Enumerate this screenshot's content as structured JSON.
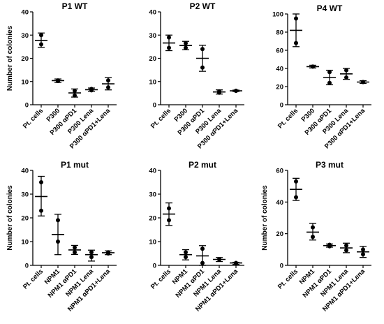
{
  "chart_data": [
    {
      "type": "scatter",
      "title": "P1 WT",
      "ylabel": "Number of colonies",
      "ylim": [
        0,
        40
      ],
      "yticks": [
        0,
        10,
        20,
        30,
        40
      ],
      "categories": [
        "Pt. cells",
        "P300",
        "P300 αPD1",
        "P300 Lena",
        "P300 αPD1+Lena"
      ],
      "points": [
        [
          30,
          26
        ],
        [
          10.5,
          10.2
        ],
        [
          6,
          4
        ],
        [
          6.2,
          6.8
        ],
        [
          10.5,
          7.5
        ]
      ],
      "mean": [
        27.7,
        10.4,
        5.1,
        6.5,
        9
      ],
      "err_low": [
        24.7,
        9.6,
        3.3,
        5.8,
        6.4
      ],
      "err_high": [
        30.9,
        11.1,
        6.8,
        7.2,
        11.7
      ],
      "grid": false,
      "legend": "none"
    },
    {
      "type": "scatter",
      "title": "P2 WT",
      "ylabel": "",
      "ylim": [
        0,
        40
      ],
      "yticks": [
        0,
        10,
        20,
        30,
        40
      ],
      "categories": [
        "Pt. cells",
        "P300",
        "P300 αPD1",
        "P300 Lena",
        "P300 αPD1+Lena"
      ],
      "points": [
        [
          29,
          24.5
        ],
        [
          26.5,
          24.5
        ],
        [
          24,
          16
        ],
        [
          5.2,
          5.8
        ],
        [
          6,
          6
        ]
      ],
      "mean": [
        26.6,
        25.5,
        20,
        5.5,
        6
      ],
      "err_low": [
        23.3,
        23.7,
        14.4,
        4.6,
        5.7
      ],
      "err_high": [
        30,
        27.3,
        25.6,
        6.4,
        6.3
      ],
      "grid": false,
      "legend": "none"
    },
    {
      "type": "scatter",
      "title": "P4 WT",
      "ylabel": "",
      "ylim": [
        0,
        100
      ],
      "yticks": [
        0,
        20,
        40,
        60,
        80,
        100
      ],
      "categories": [
        "Pt. cells",
        "P300",
        "P300 αPD1",
        "P300 Lena",
        "P300 αPD1+Lena"
      ],
      "points": [
        [
          95,
          68
        ],
        [
          42,
          42
        ],
        [
          36,
          24
        ],
        [
          38,
          30
        ],
        [
          25,
          25
        ]
      ],
      "mean": [
        82,
        42,
        30,
        34,
        25
      ],
      "err_low": [
        64,
        40.5,
        22,
        28,
        23.5
      ],
      "err_high": [
        100,
        43.5,
        38,
        40,
        26.5
      ],
      "grid": false,
      "legend": "none"
    },
    {
      "type": "scatter",
      "title": "P1 mut",
      "ylabel": "Number of colonies",
      "ylim": [
        0,
        40
      ],
      "yticks": [
        0,
        10,
        20,
        30,
        40
      ],
      "categories": [
        "Pt. cells",
        "NPM1",
        "NPM1 αPD1",
        "NPM1 Lena",
        "NPM1 αPD1+Lena"
      ],
      "points": [
        [
          35,
          23
        ],
        [
          19,
          10
        ],
        [
          7.5,
          5.5
        ],
        [
          5.5,
          3.5
        ],
        [
          5,
          5.5
        ]
      ],
      "mean": [
        29,
        13,
        6.5,
        4.5,
        5.3
      ],
      "err_low": [
        20.8,
        4.5,
        4.6,
        1.8,
        4.5
      ],
      "err_high": [
        37.5,
        21.5,
        8.4,
        6.4,
        6.1
      ],
      "grid": false,
      "legend": "none"
    },
    {
      "type": "scatter",
      "title": "P2 mut",
      "ylabel": "",
      "ylim": [
        0,
        40
      ],
      "yticks": [
        0,
        10,
        20,
        30,
        40
      ],
      "categories": [
        "Pt. cells",
        "NPM1",
        "NPM1 αPD1",
        "NPM1 Lena",
        "NPM1 αPD1+Lena"
      ],
      "points": [
        [
          24,
          19
        ],
        [
          5.5,
          3.5
        ],
        [
          7,
          1
        ],
        [
          2.5,
          2.5
        ],
        [
          1,
          1
        ]
      ],
      "mean": [
        21.6,
        4.5,
        4,
        2.5,
        1
      ],
      "err_low": [
        16.8,
        2.3,
        0,
        1.6,
        0.4
      ],
      "err_high": [
        26.3,
        6.6,
        8.3,
        3.3,
        1.3
      ],
      "grid": false,
      "legend": "none"
    },
    {
      "type": "scatter",
      "title": "P3 mut",
      "ylabel": "Number of colonies",
      "ylim": [
        0,
        60
      ],
      "yticks": [
        0,
        20,
        40,
        60
      ],
      "categories": [
        "Pt. cells",
        "NPM1",
        "NPM1 αPD1",
        "NPM1 Lena",
        "NPM1 αPD1+Lena"
      ],
      "points": [
        [
          53,
          43
        ],
        [
          24,
          18
        ],
        [
          13,
          12
        ],
        [
          12.5,
          9.5
        ],
        [
          10,
          7
        ]
      ],
      "mean": [
        48,
        21,
        12.5,
        11,
        8.5
      ],
      "err_low": [
        41,
        16,
        11.5,
        8,
        5
      ],
      "err_high": [
        55,
        26.5,
        13.5,
        14,
        12
      ],
      "grid": false,
      "legend": "none"
    }
  ],
  "colors": {
    "axis": "#000000",
    "marker": "#000000",
    "background": "#ffffff"
  }
}
